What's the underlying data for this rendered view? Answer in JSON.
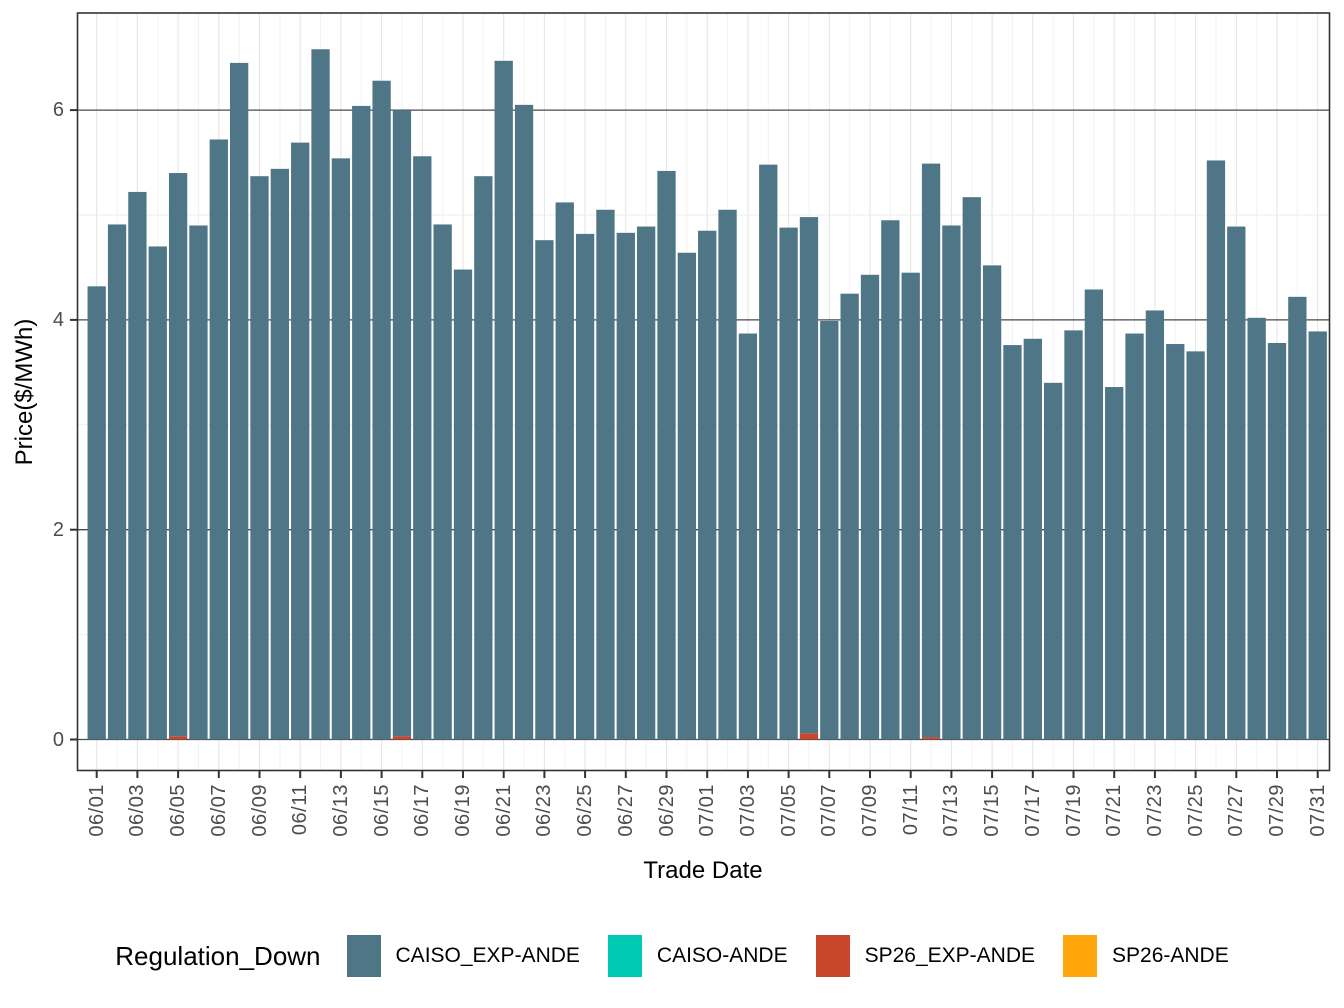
{
  "axes": {
    "x_title": "Trade Date",
    "y_title": "Price($/MWh)",
    "y_tick_labels": [
      "0",
      "2",
      "4",
      "6"
    ],
    "x_tick_labels": [
      "06/01",
      "06/03",
      "06/05",
      "06/07",
      "06/09",
      "06/11",
      "06/13",
      "06/15",
      "06/17",
      "06/19",
      "06/21",
      "06/23",
      "06/25",
      "06/27",
      "06/29",
      "07/01",
      "07/03",
      "07/05",
      "07/07",
      "07/09",
      "07/11",
      "07/13",
      "07/15",
      "07/17",
      "07/19",
      "07/21",
      "07/23",
      "07/25",
      "07/27",
      "07/29",
      "07/31"
    ]
  },
  "legend": {
    "title": "Regulation_Down",
    "entries": [
      {
        "label": "CAISO_EXP-ANDE",
        "color": "#4E7687"
      },
      {
        "label": "CAISO-ANDE",
        "color": "#00C9B1"
      },
      {
        "label": "SP26_EXP-ANDE",
        "color": "#C8462B"
      },
      {
        "label": "SP26-ANDE",
        "color": "#FFA50A"
      }
    ]
  },
  "colors": {
    "major_gridline": "#4a4a4a",
    "minor_gridline": "#ededed",
    "vertical_major_gridline": "#e3e3e3",
    "vertical_minor_gridline": "#f2f2f2",
    "panel_border": "#333333",
    "tick_mark": "#333333",
    "tick_text": "#4d4d4d"
  },
  "chart_data": {
    "type": "bar",
    "stacked": true,
    "title": "",
    "xlabel": "Trade Date",
    "ylabel": "Price($/MWh)",
    "ylim": [
      -0.3,
      6.93
    ],
    "y_ticks": [
      0,
      2,
      4,
      6
    ],
    "y_minor_gridlines": [
      1,
      3,
      5
    ],
    "grid": true,
    "legend_position": "bottom",
    "legend_title": "Regulation_Down",
    "x_tick_every": 2,
    "categories": [
      "06/01",
      "06/02",
      "06/03",
      "06/04",
      "06/05",
      "06/06",
      "06/07",
      "06/08",
      "06/09",
      "06/10",
      "06/11",
      "06/12",
      "06/13",
      "06/14",
      "06/15",
      "06/16",
      "06/17",
      "06/18",
      "06/19",
      "06/20",
      "06/21",
      "06/22",
      "06/23",
      "06/24",
      "06/25",
      "06/26",
      "06/27",
      "06/28",
      "06/29",
      "06/30",
      "07/01",
      "07/02",
      "07/03",
      "07/04",
      "07/05",
      "07/06",
      "07/07",
      "07/08",
      "07/09",
      "07/10",
      "07/11",
      "07/12",
      "07/13",
      "07/14",
      "07/15",
      "07/16",
      "07/17",
      "07/18",
      "07/19",
      "07/20",
      "07/21",
      "07/22",
      "07/23",
      "07/24",
      "07/25",
      "07/26",
      "07/27",
      "07/28",
      "07/29",
      "07/30",
      "07/31"
    ],
    "series": [
      {
        "name": "CAISO_EXP-ANDE",
        "color": "#4E7687",
        "values": [
          4.32,
          4.91,
          5.22,
          4.7,
          5.37,
          4.9,
          5.72,
          6.45,
          5.37,
          5.44,
          5.69,
          6.58,
          5.54,
          6.04,
          6.28,
          5.97,
          5.56,
          4.91,
          4.48,
          5.37,
          6.47,
          6.05,
          4.76,
          5.12,
          4.82,
          5.05,
          4.83,
          4.89,
          5.42,
          4.64,
          4.85,
          5.05,
          3.87,
          5.48,
          4.88,
          4.92,
          3.99,
          4.25,
          4.43,
          4.95,
          4.45,
          5.47,
          4.9,
          5.17,
          4.52,
          3.76,
          3.82,
          3.4,
          3.9,
          4.29,
          3.36,
          3.87,
          4.09,
          3.77,
          3.7,
          5.52,
          4.89,
          4.02,
          3.78,
          4.22,
          3.89
        ]
      },
      {
        "name": "CAISO-ANDE",
        "color": "#00C9B1",
        "values": [
          0,
          0,
          0,
          0,
          0,
          0,
          0,
          0,
          0,
          0,
          0,
          0,
          0,
          0,
          0,
          0,
          0,
          0,
          0,
          0,
          0,
          0,
          0,
          0,
          0,
          0,
          0,
          0,
          0,
          0,
          0,
          0,
          0,
          0,
          0,
          0,
          0,
          0,
          0,
          0,
          0,
          0,
          0,
          0,
          0,
          0,
          0,
          0,
          0,
          0,
          0,
          0,
          0,
          0,
          0,
          0,
          0,
          0,
          0,
          0,
          0
        ]
      },
      {
        "name": "SP26_EXP-ANDE",
        "color": "#C8462B",
        "values": [
          0,
          0,
          0,
          0,
          0.03,
          0,
          0,
          0,
          0,
          0,
          0,
          0,
          0,
          0,
          0,
          0.03,
          0,
          0,
          0,
          0,
          0,
          0,
          0,
          0,
          0,
          0,
          0,
          0,
          0,
          0,
          0,
          0,
          0,
          0,
          0,
          0.06,
          0,
          0,
          0,
          0,
          0,
          0.02,
          0,
          0,
          0,
          0,
          0,
          0,
          0,
          0,
          0,
          0,
          0,
          0,
          0,
          0,
          0,
          0,
          0,
          0,
          0
        ]
      },
      {
        "name": "SP26-ANDE",
        "color": "#FFA50A",
        "values": [
          0,
          0,
          0,
          0,
          0,
          0,
          0,
          0,
          0,
          0,
          0,
          0,
          0,
          0,
          0,
          0,
          0,
          0,
          0,
          0,
          0,
          0,
          0,
          0,
          0,
          0,
          0,
          0,
          0,
          0,
          0,
          0,
          0,
          0,
          0,
          0,
          0,
          0,
          0,
          0,
          0,
          0,
          0,
          0,
          0,
          0,
          0,
          0,
          0,
          0,
          0,
          0,
          0,
          0,
          0,
          0,
          0,
          0,
          0,
          0,
          0
        ]
      }
    ]
  }
}
